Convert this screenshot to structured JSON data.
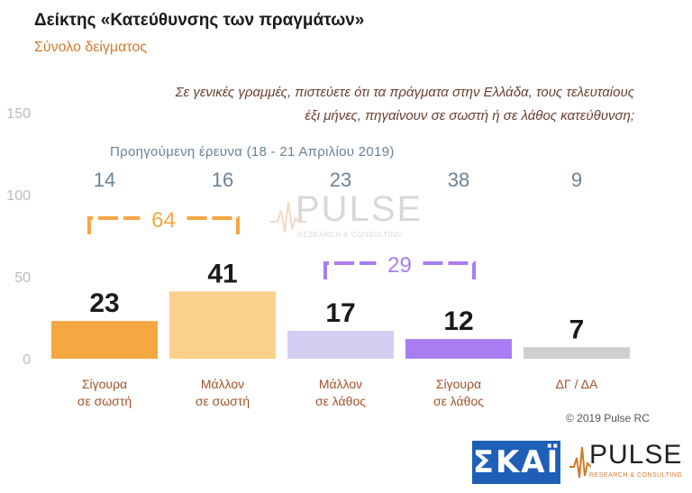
{
  "header": {
    "title": "Δείκτης «Κατεύθυνσης των πραγμάτων»",
    "subtitle": "Σύνολο δείγματος"
  },
  "question": {
    "line1": "Σε γενικές γραμμές, πιστεύετε ότι τα πράγματα στην Ελλάδα, τους τελευταίους",
    "line2": "έξι μήνες, πηγαίνουν σε σωστή ή σε λάθος κατεύθυνση;"
  },
  "previous_survey_label": "Προηγούμενη έρευνα  (18 - 21  Απριλίου  2019)",
  "copyright": "© 2019 Pulse RC",
  "logos": {
    "skai_text": "ΣΚΑΪ",
    "pulse_text": "PULSE",
    "pulse_tagline": "RESEARCH & CONSULTING"
  },
  "chart_data": {
    "type": "bar",
    "ylim": [
      0,
      150
    ],
    "yticks": [
      0,
      50,
      100,
      150
    ],
    "categories": [
      [
        "Σίγουρα",
        "σε σωστή"
      ],
      [
        "Μάλλον",
        "σε σωστή"
      ],
      [
        "Μάλλον",
        "σε λάθος"
      ],
      [
        "Σίγουρα",
        "σε λάθος"
      ],
      [
        "ΔΓ / ΔΑ"
      ]
    ],
    "values": [
      23,
      41,
      17,
      12,
      7
    ],
    "previous_values": [
      14,
      16,
      23,
      38,
      9
    ],
    "bar_colors": [
      "#f5a742",
      "#fbd08a",
      "#d4cdf2",
      "#a87df2",
      "#cfcfcf"
    ],
    "groups": [
      {
        "label": "64",
        "color": "#f5a742",
        "from": 0,
        "to": 1
      },
      {
        "label": "29",
        "color": "#a87df2",
        "from": 2,
        "to": 3
      }
    ],
    "colors": {
      "axis_text": "#bbbbbb",
      "value_text": "#1a1a1a",
      "previous_text": "#6a8296",
      "category_text": "#a0532b"
    }
  }
}
